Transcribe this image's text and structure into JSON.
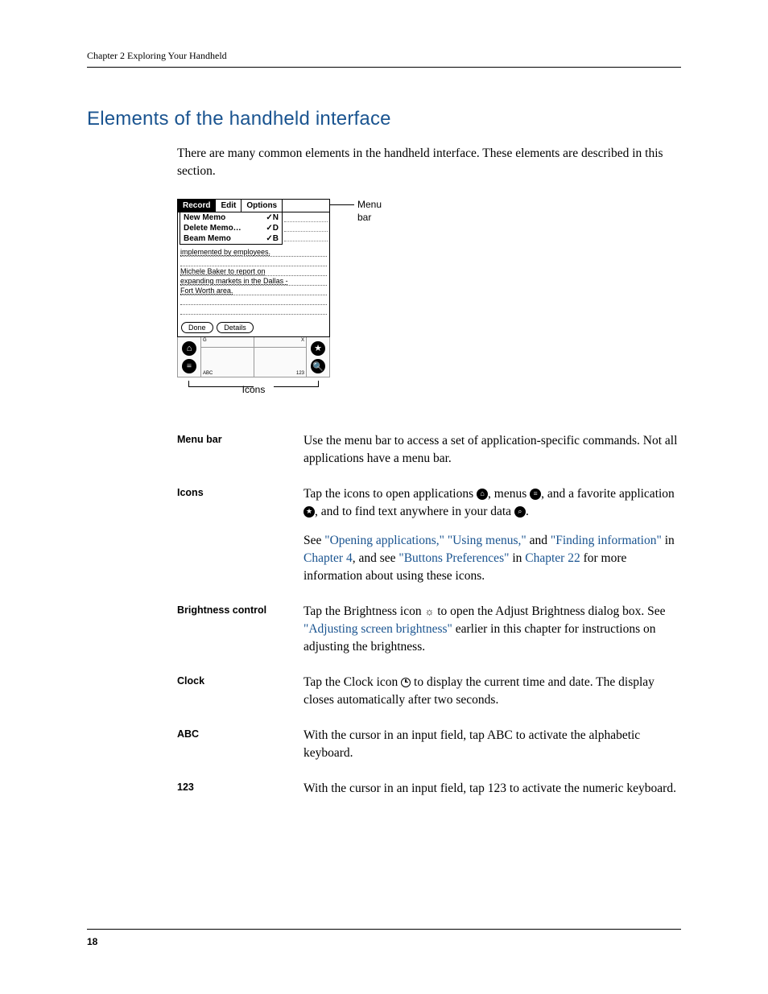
{
  "header": {
    "chapter_line": "Chapter 2   Exploring Your Handheld"
  },
  "section": {
    "title": "Elements of the handheld interface",
    "intro": "There are many common elements in the handheld interface. These elements are described in this section."
  },
  "figure": {
    "menu_tabs": [
      "Record",
      "Edit",
      "Options"
    ],
    "menu_items": [
      {
        "label": "New Memo",
        "shortcut": "✓N"
      },
      {
        "label": "Delete Memo…",
        "shortcut": "✓D"
      },
      {
        "label": "Beam Memo",
        "shortcut": "✓B"
      }
    ],
    "memo_lines": [
      "implemented by employees.",
      "",
      "Michele Baker to report on",
      "expanding markets in the Dallas -",
      "Fort Worth area.",
      "",
      ""
    ],
    "buttons": [
      "Done",
      "Details"
    ],
    "silk_labels": {
      "tl": "G",
      "tr": "X",
      "bl": "ABC",
      "br": "123"
    },
    "callout_menu": "Menu bar",
    "callout_icons": "Icons"
  },
  "definitions": [
    {
      "term": "Menu bar",
      "paragraphs": [
        {
          "parts": [
            {
              "t": "Use the menu bar to access a set of application-specific commands. Not all applications have a menu bar."
            }
          ]
        }
      ]
    },
    {
      "term": "Icons",
      "paragraphs": [
        {
          "parts": [
            {
              "t": "Tap the icons to open applications "
            },
            {
              "icon": "home"
            },
            {
              "t": ", menus "
            },
            {
              "icon": "menu"
            },
            {
              "t": ", and a favorite application "
            },
            {
              "icon": "star"
            },
            {
              "t": ", and to find text anywhere in your data "
            },
            {
              "icon": "find"
            },
            {
              "t": "."
            }
          ]
        },
        {
          "parts": [
            {
              "t": "See "
            },
            {
              "t": "\"Opening applications,\"",
              "link": true
            },
            {
              "t": " "
            },
            {
              "t": "\"Using menus,\"",
              "link": true
            },
            {
              "t": " and "
            },
            {
              "t": "\"Finding information\"",
              "link": true
            },
            {
              "t": " in "
            },
            {
              "t": "Chapter 4",
              "link": true
            },
            {
              "t": ", and see "
            },
            {
              "t": "\"Buttons Preferences\"",
              "link": true
            },
            {
              "t": " in "
            },
            {
              "t": "Chapter 22",
              "link": true
            },
            {
              "t": " for more information about using these icons."
            }
          ]
        }
      ]
    },
    {
      "term": "Brightness control",
      "paragraphs": [
        {
          "parts": [
            {
              "t": "Tap the Brightness icon "
            },
            {
              "icon": "brightness"
            },
            {
              "t": " to open the Adjust Brightness dialog box. See "
            },
            {
              "t": "\"Adjusting screen brightness\"",
              "link": true
            },
            {
              "t": " earlier in this chapter for instructions on adjusting the brightness."
            }
          ]
        }
      ]
    },
    {
      "term": "Clock",
      "paragraphs": [
        {
          "parts": [
            {
              "t": "Tap the Clock icon "
            },
            {
              "icon": "clock"
            },
            {
              "t": " to display the current time and date. The display closes automatically after two seconds."
            }
          ]
        }
      ]
    },
    {
      "term": "ABC",
      "paragraphs": [
        {
          "parts": [
            {
              "t": "With the cursor in an input field, tap ABC to activate the alphabetic keyboard."
            }
          ]
        }
      ]
    },
    {
      "term": "123",
      "paragraphs": [
        {
          "parts": [
            {
              "t": "With the cursor in an input field, tap 123 to activate the numeric keyboard."
            }
          ]
        }
      ]
    }
  ],
  "footer": {
    "page_number": "18"
  },
  "colors": {
    "heading": "#1a5490",
    "link": "#1a5490",
    "text": "#000000",
    "background": "#ffffff"
  }
}
